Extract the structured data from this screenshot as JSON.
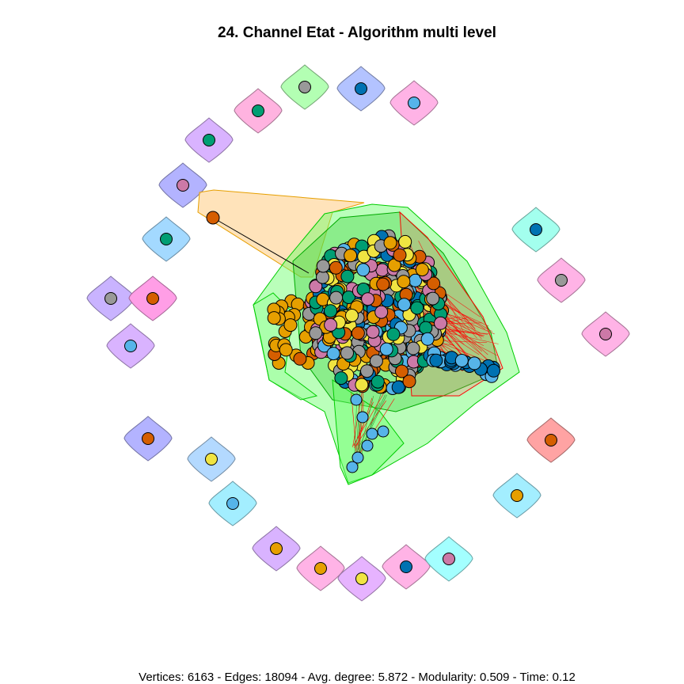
{
  "title": "24. Channel Etat - Algorithm multi level",
  "caption": "Vertices: 6163 - Edges: 18094 - Avg. degree: 5.872 - Modularity: 0.509 - Time: 0.12",
  "graph_stats": {
    "vertices": 6163,
    "edges": 18094,
    "avg_degree": 5.872,
    "modularity": 0.509,
    "time": 0.12
  },
  "palette": {
    "node_colors": [
      "#E69F00",
      "#56B4E9",
      "#009E73",
      "#F0E442",
      "#0072B2",
      "#D55E00",
      "#CC79A7",
      "#999999"
    ],
    "hull_colors": [
      "#FF9EE6",
      "#B3B3FF",
      "#B3FFB3",
      "#C9A3FF",
      "#A3D9FF",
      "#A3FFEE",
      "#FFA3A3",
      "#A3FFFF",
      "#FFD9A3",
      "#66FF66"
    ],
    "edge_color": "#FF0000"
  },
  "peripheral_communities": [
    {
      "hull": "#B3FFB3",
      "node": "#999999"
    },
    {
      "hull": "#B3C3FF",
      "node": "#0072B2"
    },
    {
      "hull": "#FFB3E6",
      "node": "#56B4E9"
    },
    {
      "hull": "#FFB3E0",
      "node": "#009E73"
    },
    {
      "hull": "#D9B3FF",
      "node": "#009E73"
    },
    {
      "hull": "#B3B3FF",
      "node": "#CC79A7"
    },
    {
      "hull": "#A3D9FF",
      "node": "#009E73"
    },
    {
      "hull": "#C9B3FF",
      "node": "#999999"
    },
    {
      "hull": "#FF9EE6",
      "node": "#D55E00"
    },
    {
      "hull": "#D9B3FF",
      "node": "#56B4E9"
    },
    {
      "hull": "#B3B3FF",
      "node": "#D55E00"
    },
    {
      "hull": "#B3D9FF",
      "node": "#F0E442"
    },
    {
      "hull": "#A3EEFF",
      "node": "#56B4E9"
    },
    {
      "hull": "#D9B3FF",
      "node": "#E69F00"
    },
    {
      "hull": "#FFB3E6",
      "node": "#E69F00"
    },
    {
      "hull": "#E6B3FF",
      "node": "#F0E442"
    },
    {
      "hull": "#FFB3E6",
      "node": "#0072B2"
    },
    {
      "hull": "#A3FFFF",
      "node": "#CC79A7"
    },
    {
      "hull": "#A3EEFF",
      "node": "#E69F00"
    },
    {
      "hull": "#FFA3A3",
      "node": "#D55E00"
    },
    {
      "hull": "#FFB3E6",
      "node": "#CC79A7"
    },
    {
      "hull": "#FFB3E6",
      "node": "#999999"
    },
    {
      "hull": "#A3FFEE",
      "node": "#0072B2"
    }
  ]
}
